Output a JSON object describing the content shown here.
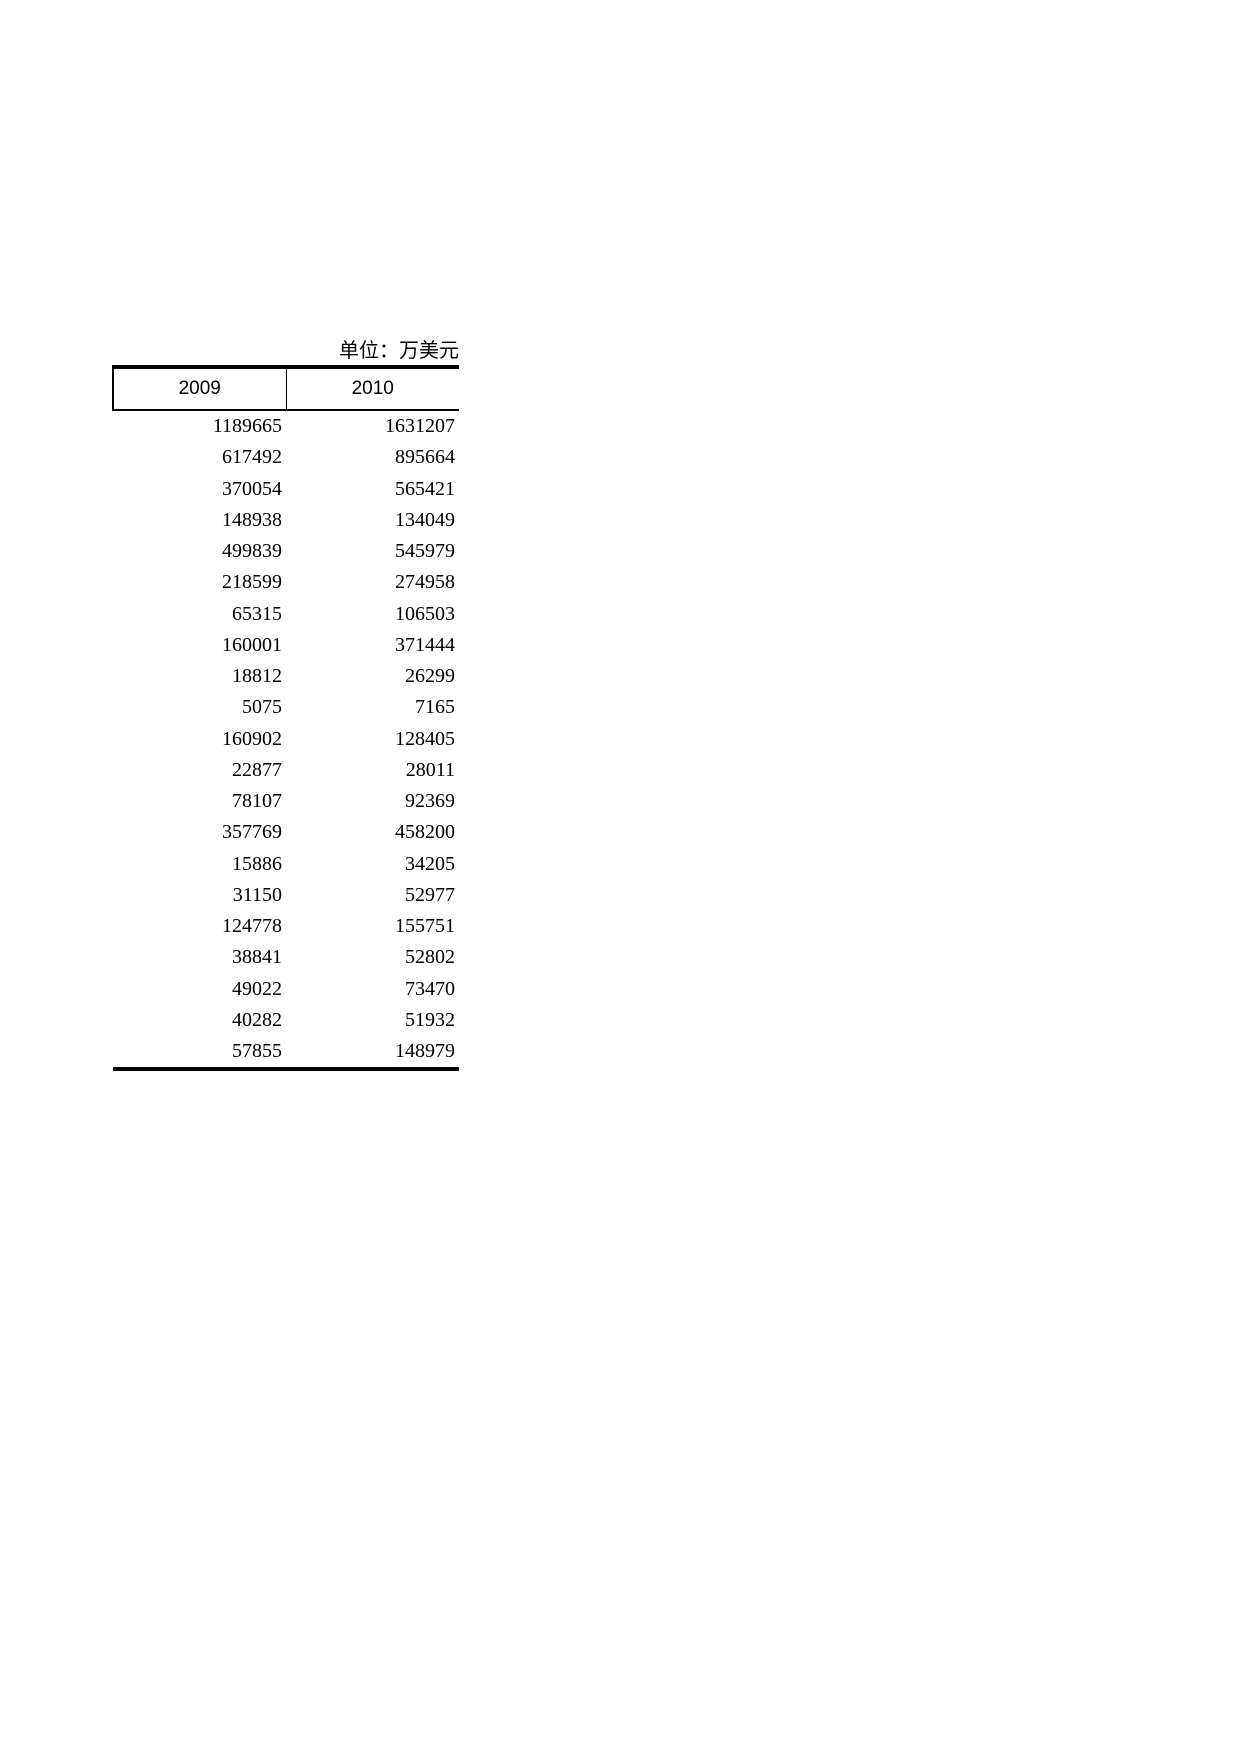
{
  "unit_label": "单位：万美元",
  "table": {
    "headers": [
      "2009",
      "2010"
    ],
    "rows": [
      [
        "1189665",
        "1631207"
      ],
      [
        "617492",
        "895664"
      ],
      [
        "370054",
        "565421"
      ],
      [
        "148938",
        "134049"
      ],
      [
        "499839",
        "545979"
      ],
      [
        "218599",
        "274958"
      ],
      [
        "65315",
        "106503"
      ],
      [
        "160001",
        "371444"
      ],
      [
        "18812",
        "26299"
      ],
      [
        "5075",
        "7165"
      ],
      [
        "160902",
        "128405"
      ],
      [
        "22877",
        "28011"
      ],
      [
        "78107",
        "92369"
      ],
      [
        "357769",
        "458200"
      ],
      [
        "15886",
        "34205"
      ],
      [
        "31150",
        "52977"
      ],
      [
        "124778",
        "155751"
      ],
      [
        "38841",
        "52802"
      ],
      [
        "49022",
        "73470"
      ],
      [
        "40282",
        "51932"
      ],
      [
        "57855",
        "148979"
      ]
    ]
  }
}
